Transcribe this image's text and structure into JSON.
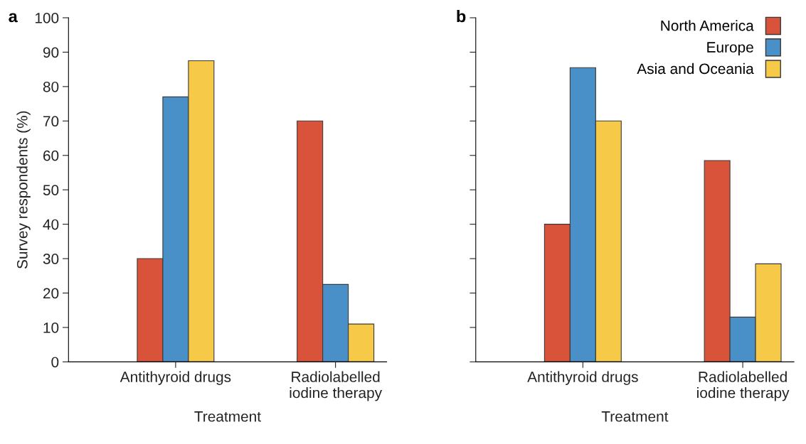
{
  "chart_data": [
    {
      "type": "bar",
      "title": "a",
      "xlabel": "Treatment",
      "ylabel": "Survey respondents (%)",
      "categories": [
        "Antithyroid drugs",
        "Radiolabelled\niodine therapy"
      ],
      "ylim": [
        0,
        100
      ],
      "yticks": [
        0,
        10,
        20,
        30,
        40,
        50,
        60,
        70,
        80,
        90,
        100
      ],
      "grid": false,
      "legend": false,
      "series": [
        {
          "color": "#d9533a",
          "values": [
            30,
            70
          ]
        },
        {
          "color": "#4a90c8",
          "values": [
            77,
            22.5
          ]
        },
        {
          "color": "#f7c948",
          "values": [
            87.5,
            11
          ]
        }
      ]
    },
    {
      "type": "bar",
      "title": "b",
      "xlabel": "Treatment",
      "categories": [
        "Antithyroid drugs",
        "Radiolabelled\niodine therapy"
      ],
      "ylim": [
        0,
        100
      ],
      "yticks": [
        0,
        10,
        20,
        30,
        40,
        50,
        60,
        70,
        80,
        90,
        100
      ],
      "tick_labels": "x",
      "grid": false,
      "legend": "top right",
      "series": [
        {
          "name": "North America",
          "color": "#d9533a",
          "values": [
            40,
            58.5
          ]
        },
        {
          "name": "Europe",
          "color": "#4a90c8",
          "values": [
            85.5,
            13
          ]
        },
        {
          "name": "Asia and Oceania",
          "color": "#f7c948",
          "values": [
            70,
            28.5
          ]
        }
      ]
    }
  ]
}
